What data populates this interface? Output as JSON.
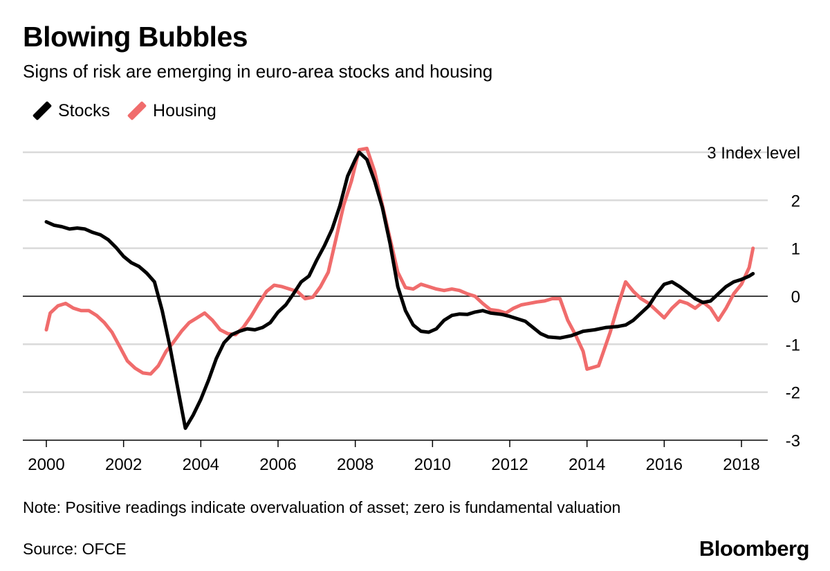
{
  "title": "Blowing Bubbles",
  "subtitle": "Signs of risk are emerging in euro-area stocks and housing",
  "note": "Note: Positive readings indicate overvaluation of asset; zero is fundamental valuation",
  "source": "Source: OFCE",
  "brand": "Bloomberg",
  "colors": {
    "stocks": "#000000",
    "housing": "#f06c6c",
    "grid": "#d9d9d9",
    "zero": "#000000"
  },
  "chart_data": {
    "type": "line",
    "title": "Blowing Bubbles",
    "subtitle": "Signs of risk are emerging in euro-area stocks and housing",
    "xlim": [
      2000,
      2019
    ],
    "ylim": [
      -3,
      3
    ],
    "x_ticks": [
      2000,
      2002,
      2004,
      2006,
      2008,
      2010,
      2012,
      2014,
      2016,
      2018
    ],
    "x_tick_labels": [
      "2000",
      "2002",
      "2004",
      "2006",
      "2008",
      "2010",
      "2012",
      "2014",
      "2016",
      "2018"
    ],
    "y_ticks": [
      3,
      2,
      1,
      0,
      -1,
      -2,
      -3
    ],
    "y_tick_labels": [
      "3 Index level",
      "2",
      "1",
      "0",
      "-1",
      "-2",
      "-3"
    ],
    "grid": true,
    "legend_position": "top-left",
    "series": [
      {
        "name": "Stocks",
        "color": "#000000",
        "points": [
          [
            2000.0,
            1.55
          ],
          [
            2000.2,
            1.48
          ],
          [
            2000.4,
            1.45
          ],
          [
            2000.6,
            1.4
          ],
          [
            2000.8,
            1.42
          ],
          [
            2001.0,
            1.4
          ],
          [
            2001.2,
            1.33
          ],
          [
            2001.4,
            1.28
          ],
          [
            2001.6,
            1.18
          ],
          [
            2001.8,
            1.02
          ],
          [
            2002.0,
            0.83
          ],
          [
            2002.2,
            0.7
          ],
          [
            2002.4,
            0.62
          ],
          [
            2002.6,
            0.48
          ],
          [
            2002.8,
            0.3
          ],
          [
            2003.0,
            -0.3
          ],
          [
            2003.2,
            -1.05
          ],
          [
            2003.4,
            -1.9
          ],
          [
            2003.6,
            -2.75
          ],
          [
            2003.8,
            -2.48
          ],
          [
            2004.0,
            -2.15
          ],
          [
            2004.2,
            -1.75
          ],
          [
            2004.4,
            -1.3
          ],
          [
            2004.6,
            -0.97
          ],
          [
            2004.8,
            -0.8
          ],
          [
            2005.0,
            -0.73
          ],
          [
            2005.2,
            -0.68
          ],
          [
            2005.4,
            -0.7
          ],
          [
            2005.6,
            -0.65
          ],
          [
            2005.8,
            -0.55
          ],
          [
            2006.0,
            -0.33
          ],
          [
            2006.2,
            -0.18
          ],
          [
            2006.4,
            0.05
          ],
          [
            2006.6,
            0.3
          ],
          [
            2006.8,
            0.42
          ],
          [
            2007.0,
            0.75
          ],
          [
            2007.2,
            1.05
          ],
          [
            2007.4,
            1.4
          ],
          [
            2007.6,
            1.88
          ],
          [
            2007.8,
            2.5
          ],
          [
            2008.0,
            2.85
          ],
          [
            2008.1,
            3.0
          ],
          [
            2008.3,
            2.85
          ],
          [
            2008.5,
            2.4
          ],
          [
            2008.7,
            1.85
          ],
          [
            2008.9,
            1.1
          ],
          [
            2009.1,
            0.2
          ],
          [
            2009.3,
            -0.3
          ],
          [
            2009.5,
            -0.6
          ],
          [
            2009.7,
            -0.73
          ],
          [
            2009.9,
            -0.75
          ],
          [
            2010.1,
            -0.68
          ],
          [
            2010.3,
            -0.5
          ],
          [
            2010.5,
            -0.4
          ],
          [
            2010.7,
            -0.37
          ],
          [
            2010.9,
            -0.38
          ],
          [
            2011.1,
            -0.33
          ],
          [
            2011.3,
            -0.3
          ],
          [
            2011.5,
            -0.35
          ],
          [
            2011.8,
            -0.38
          ],
          [
            2012.0,
            -0.42
          ],
          [
            2012.2,
            -0.47
          ],
          [
            2012.4,
            -0.52
          ],
          [
            2012.6,
            -0.65
          ],
          [
            2012.8,
            -0.78
          ],
          [
            2013.0,
            -0.85
          ],
          [
            2013.3,
            -0.87
          ],
          [
            2013.6,
            -0.82
          ],
          [
            2013.9,
            -0.73
          ],
          [
            2014.2,
            -0.7
          ],
          [
            2014.5,
            -0.65
          ],
          [
            2014.8,
            -0.63
          ],
          [
            2015.0,
            -0.6
          ],
          [
            2015.2,
            -0.5
          ],
          [
            2015.4,
            -0.35
          ],
          [
            2015.6,
            -0.2
          ],
          [
            2015.8,
            0.05
          ],
          [
            2016.0,
            0.25
          ],
          [
            2016.2,
            0.3
          ],
          [
            2016.4,
            0.2
          ],
          [
            2016.6,
            0.08
          ],
          [
            2016.8,
            -0.05
          ],
          [
            2017.0,
            -0.13
          ],
          [
            2017.2,
            -0.1
          ],
          [
            2017.4,
            0.05
          ],
          [
            2017.6,
            0.2
          ],
          [
            2017.8,
            0.3
          ],
          [
            2018.0,
            0.35
          ],
          [
            2018.2,
            0.42
          ],
          [
            2018.3,
            0.47
          ]
        ]
      },
      {
        "name": "Housing",
        "color": "#f06c6c",
        "points": [
          [
            2000.0,
            -0.7
          ],
          [
            2000.1,
            -0.35
          ],
          [
            2000.3,
            -0.2
          ],
          [
            2000.5,
            -0.15
          ],
          [
            2000.7,
            -0.25
          ],
          [
            2000.9,
            -0.3
          ],
          [
            2001.1,
            -0.3
          ],
          [
            2001.3,
            -0.4
          ],
          [
            2001.5,
            -0.55
          ],
          [
            2001.7,
            -0.75
          ],
          [
            2001.9,
            -1.05
          ],
          [
            2002.1,
            -1.35
          ],
          [
            2002.3,
            -1.5
          ],
          [
            2002.5,
            -1.6
          ],
          [
            2002.7,
            -1.62
          ],
          [
            2002.9,
            -1.45
          ],
          [
            2003.1,
            -1.15
          ],
          [
            2003.3,
            -0.95
          ],
          [
            2003.5,
            -0.73
          ],
          [
            2003.7,
            -0.55
          ],
          [
            2003.9,
            -0.45
          ],
          [
            2004.1,
            -0.35
          ],
          [
            2004.3,
            -0.5
          ],
          [
            2004.5,
            -0.7
          ],
          [
            2004.7,
            -0.78
          ],
          [
            2004.9,
            -0.8
          ],
          [
            2005.1,
            -0.65
          ],
          [
            2005.3,
            -0.42
          ],
          [
            2005.5,
            -0.15
          ],
          [
            2005.7,
            0.1
          ],
          [
            2005.9,
            0.23
          ],
          [
            2006.1,
            0.2
          ],
          [
            2006.3,
            0.15
          ],
          [
            2006.5,
            0.1
          ],
          [
            2006.7,
            -0.05
          ],
          [
            2006.9,
            -0.02
          ],
          [
            2007.1,
            0.2
          ],
          [
            2007.3,
            0.5
          ],
          [
            2007.5,
            1.2
          ],
          [
            2007.7,
            1.9
          ],
          [
            2007.9,
            2.4
          ],
          [
            2008.1,
            3.05
          ],
          [
            2008.3,
            3.08
          ],
          [
            2008.5,
            2.6
          ],
          [
            2008.7,
            1.9
          ],
          [
            2008.9,
            1.2
          ],
          [
            2009.1,
            0.5
          ],
          [
            2009.3,
            0.18
          ],
          [
            2009.5,
            0.15
          ],
          [
            2009.7,
            0.25
          ],
          [
            2009.9,
            0.2
          ],
          [
            2010.1,
            0.15
          ],
          [
            2010.3,
            0.12
          ],
          [
            2010.5,
            0.15
          ],
          [
            2010.7,
            0.12
          ],
          [
            2010.9,
            0.05
          ],
          [
            2011.1,
            0.0
          ],
          [
            2011.3,
            -0.15
          ],
          [
            2011.5,
            -0.28
          ],
          [
            2011.7,
            -0.3
          ],
          [
            2011.9,
            -0.35
          ],
          [
            2012.1,
            -0.25
          ],
          [
            2012.3,
            -0.18
          ],
          [
            2012.5,
            -0.15
          ],
          [
            2012.7,
            -0.12
          ],
          [
            2012.9,
            -0.1
          ],
          [
            2013.1,
            -0.05
          ],
          [
            2013.3,
            -0.05
          ],
          [
            2013.5,
            -0.5
          ],
          [
            2013.7,
            -0.8
          ],
          [
            2013.9,
            -1.15
          ],
          [
            2014.0,
            -1.52
          ],
          [
            2014.3,
            -1.45
          ],
          [
            2014.6,
            -0.75
          ],
          [
            2014.8,
            -0.2
          ],
          [
            2015.0,
            0.3
          ],
          [
            2015.2,
            0.1
          ],
          [
            2015.4,
            -0.05
          ],
          [
            2015.6,
            -0.15
          ],
          [
            2015.8,
            -0.3
          ],
          [
            2016.0,
            -0.45
          ],
          [
            2016.2,
            -0.25
          ],
          [
            2016.4,
            -0.1
          ],
          [
            2016.6,
            -0.15
          ],
          [
            2016.8,
            -0.25
          ],
          [
            2017.0,
            -0.12
          ],
          [
            2017.2,
            -0.25
          ],
          [
            2017.4,
            -0.5
          ],
          [
            2017.6,
            -0.25
          ],
          [
            2017.8,
            0.05
          ],
          [
            2018.0,
            0.25
          ],
          [
            2018.2,
            0.6
          ],
          [
            2018.3,
            1.0
          ]
        ]
      }
    ]
  }
}
